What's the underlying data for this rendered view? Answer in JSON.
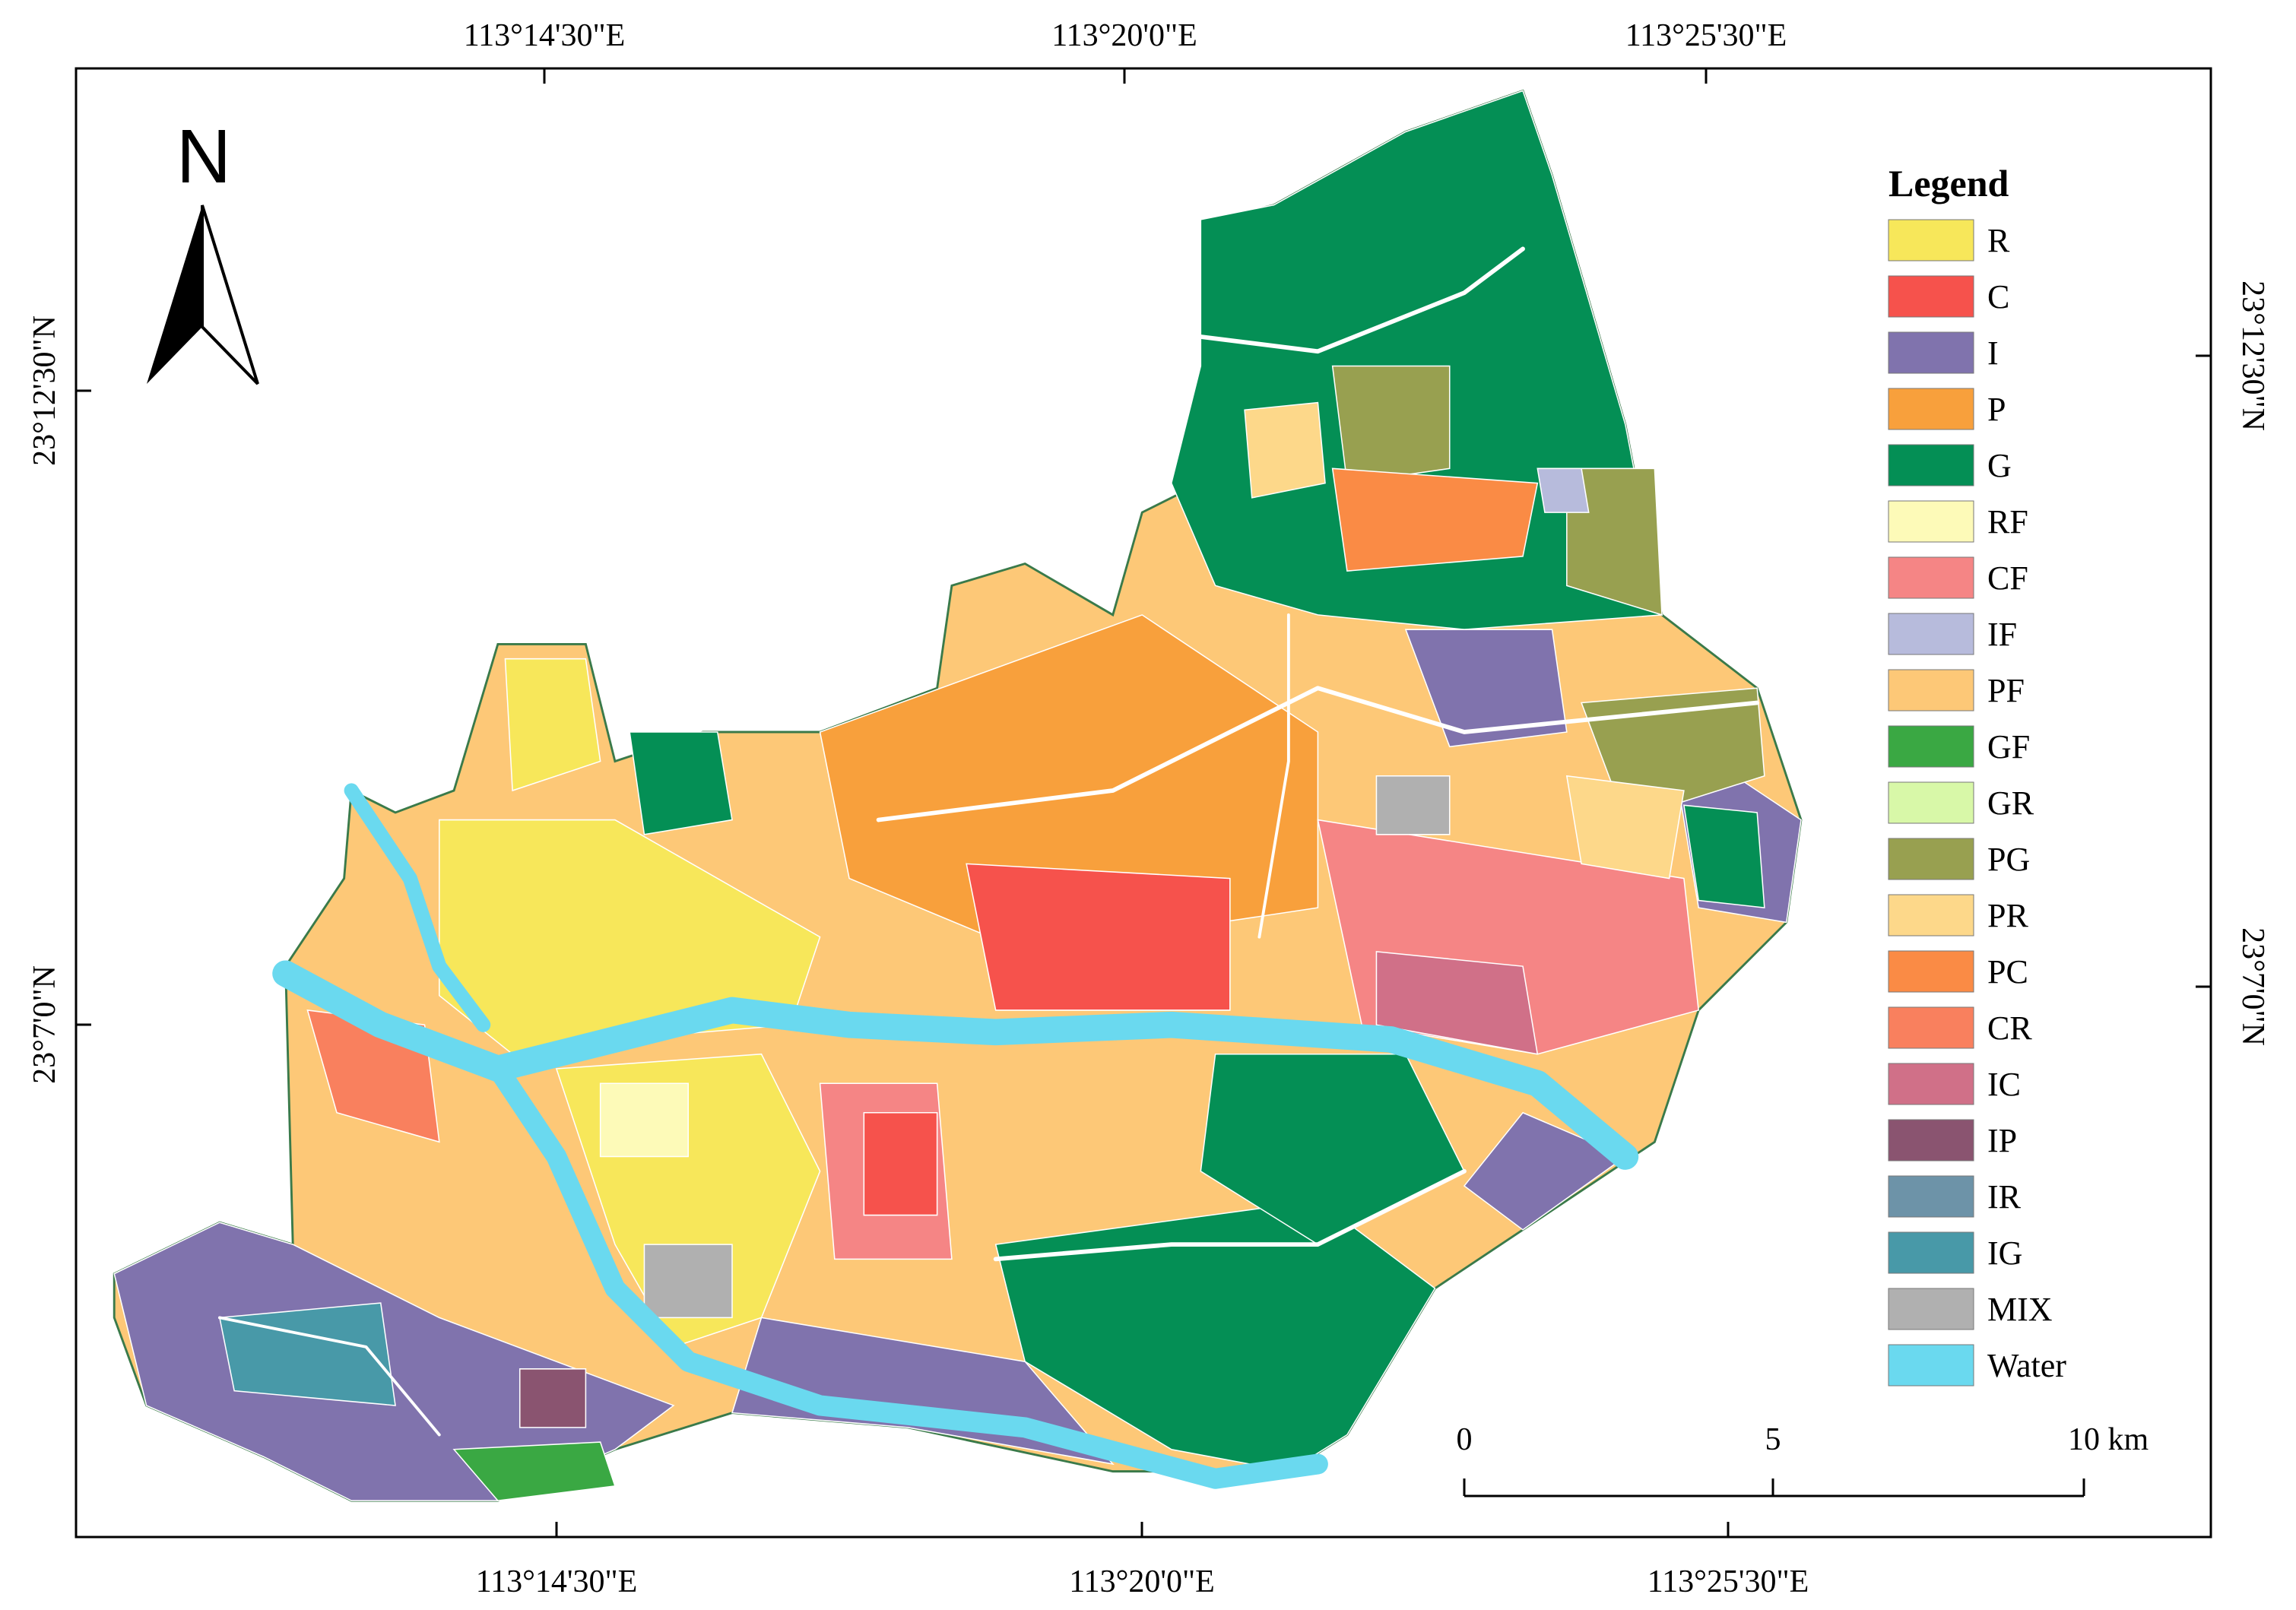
{
  "map": {
    "north_label": "N",
    "top_labels": [
      "113°14'30\"E",
      "113°20'0\"E",
      "113°25'30\"E"
    ],
    "bottom_labels": [
      "113°14'30\"E",
      "113°20'0\"E",
      "113°25'30\"E"
    ],
    "left_labels": [
      "23°12'30\"N",
      "23°7'0\"N"
    ],
    "right_labels": [
      "23°12'30\"N",
      "23°7'0\"N"
    ],
    "legend": {
      "title": "Legend",
      "items": [
        {
          "label": "R",
          "color": "#f7e75a"
        },
        {
          "label": "C",
          "color": "#f6524c"
        },
        {
          "label": "I",
          "color": "#8073ad"
        },
        {
          "label": "P",
          "color": "#f8a03c"
        },
        {
          "label": "G",
          "color": "#048f55"
        },
        {
          "label": "RF",
          "color": "#fdfab8"
        },
        {
          "label": "CF",
          "color": "#f58585"
        },
        {
          "label": "IF",
          "color": "#b7bbdc"
        },
        {
          "label": "PF",
          "color": "#fdc877"
        },
        {
          "label": "GF",
          "color": "#3aa843"
        },
        {
          "label": "GR",
          "color": "#d8f8a8"
        },
        {
          "label": "PG",
          "color": "#98a050"
        },
        {
          "label": "PR",
          "color": "#fdd88a"
        },
        {
          "label": "PC",
          "color": "#fa8b45"
        },
        {
          "label": "CR",
          "color": "#f9805e"
        },
        {
          "label": "IC",
          "color": "#d07088"
        },
        {
          "label": "IP",
          "color": "#8a5470"
        },
        {
          "label": "IR",
          "color": "#6d93a8"
        },
        {
          "label": "IG",
          "color": "#4899a8"
        },
        {
          "label": "MIX",
          "color": "#b0b0b0"
        },
        {
          "label": "Water",
          "color": "#6ad9ef"
        }
      ]
    },
    "scale_bar": {
      "labels": [
        "0",
        "5",
        "10 km"
      ]
    }
  }
}
